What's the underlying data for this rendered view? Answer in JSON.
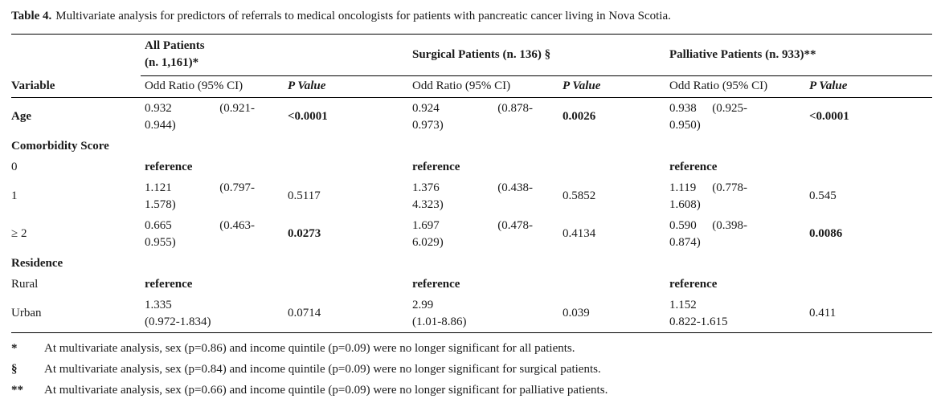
{
  "title": {
    "label": "Table 4.",
    "text": "Multivariate analysis for predictors of referrals to medical oncologists for patients with pancreatic cancer living in Nova Scotia."
  },
  "header": {
    "groups": [
      {
        "line1": "All Patients",
        "line2": "(n. 1,161)*"
      },
      {
        "line1": "Surgical Patients (n. 136) §"
      },
      {
        "line1": "Palliative Patients (n. 933)**"
      }
    ],
    "variable": "Variable",
    "or_label": "Odd Ratio (95% CI)",
    "p_label": "P Value"
  },
  "rows": [
    {
      "label": "Age",
      "cells": [
        {
          "v": "0.932",
          "ci1": "(0.921-",
          "ci2": "0.944)",
          "p": "<0.0001"
        },
        {
          "v": "0.924",
          "ci1": "(0.878-",
          "ci2": "0.973)",
          "p": "0.0026"
        },
        {
          "v": "0.938",
          "ci1": "(0.925-",
          "ci2": "0.950)",
          "p": "<0.0001"
        }
      ]
    },
    {
      "label": "Comorbidity Score"
    },
    {
      "label": "0",
      "reference": "reference"
    },
    {
      "label": "1",
      "cells": [
        {
          "v": "1.121",
          "ci1": "(0.797-",
          "ci2": "1.578)",
          "p": "0.5117"
        },
        {
          "v": "1.376",
          "ci1": "(0.438-",
          "ci2": "4.323)",
          "p": "0.5852"
        },
        {
          "v": "1.119",
          "ci1": "(0.778-",
          "ci2": "1.608)",
          "p": "0.545"
        }
      ]
    },
    {
      "label": "≥ 2",
      "cells": [
        {
          "v": "0.665",
          "ci1": "(0.463-",
          "ci2": "0.955)",
          "p": "0.0273"
        },
        {
          "v": "1.697",
          "ci1": "(0.478-",
          "ci2": "6.029)",
          "p": "0.4134"
        },
        {
          "v": "0.590",
          "ci1": "(0.398-",
          "ci2": "0.874)",
          "p": "0.0086"
        }
      ]
    },
    {
      "label": "Residence"
    },
    {
      "label": "Rural",
      "reference": "reference"
    },
    {
      "label": "Urban",
      "cells": [
        {
          "v": "1.335",
          "ci1": "",
          "ci2": "(0.972-1.834)",
          "p": "0.0714"
        },
        {
          "v": "2.99",
          "ci1": "",
          "ci2": "(1.01-8.86)",
          "p": "0.039"
        },
        {
          "v": "1.152",
          "ci1": "",
          "ci2": "0.822-1.615",
          "p": "0.411"
        }
      ]
    }
  ],
  "footnotes": [
    {
      "symbol": "*",
      "text": "At multivariate analysis, sex (p=0.86) and income quintile (p=0.09) were no longer significant for all patients."
    },
    {
      "symbol": "§",
      "text": "At multivariate analysis, sex (p=0.84) and income quintile (p=0.09) were no longer significant for surgical patients."
    },
    {
      "symbol": "**",
      "text": "At multivariate analysis, sex (p=0.66) and income quintile (p=0.09) were no longer significant for palliative patients."
    }
  ]
}
